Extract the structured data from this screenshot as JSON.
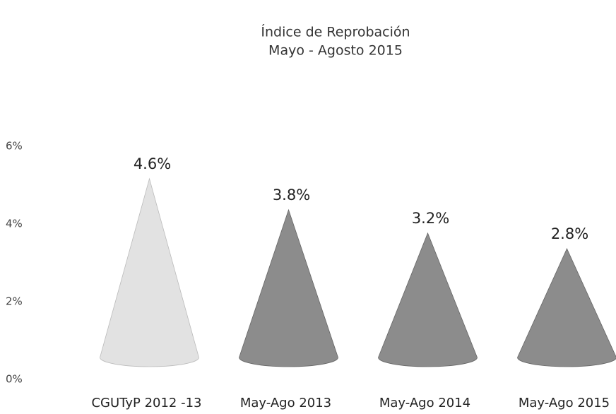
{
  "chart_data": {
    "type": "cone",
    "title": "Índice de Reprobación",
    "subtitle": "Mayo - Agosto 2015",
    "categories": [
      "CGUTyP 2012 -13",
      "May-Ago 2013",
      "May-Ago 2014",
      "May-Ago 2015"
    ],
    "values": [
      4.6,
      3.8,
      3.2,
      2.8
    ],
    "value_labels": [
      "4.6%",
      "3.8%",
      "3.2%",
      "2.8%"
    ],
    "colors": [
      "#e2e2e2",
      "#8c8c8c",
      "#8c8c8c",
      "#8c8c8c"
    ],
    "ylim": [
      0,
      6
    ],
    "yticks": [
      {
        "value": 0,
        "label": "0%"
      },
      {
        "value": 2,
        "label": "2%"
      },
      {
        "value": 4,
        "label": "4%"
      },
      {
        "value": 6,
        "label": "6%"
      }
    ],
    "grid": false
  }
}
